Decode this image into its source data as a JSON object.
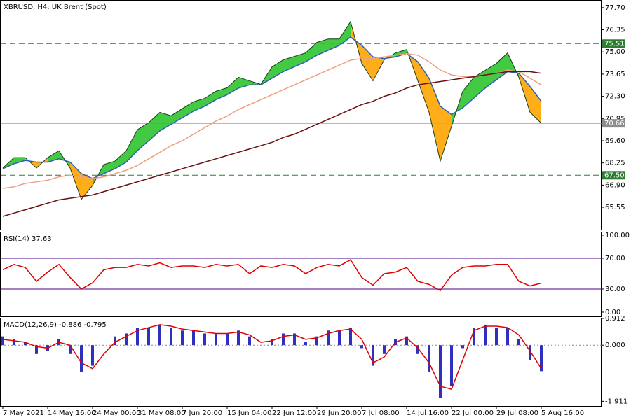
{
  "chart_data": [
    {
      "type": "price",
      "title": "XBRUSD, H4:  UK Brent (Spot)",
      "categories": [
        "7 May 2021",
        null,
        null,
        null,
        "14 May 16:00",
        null,
        null,
        null,
        "24 May 00:00",
        null,
        null,
        null,
        "31 May 08:00",
        null,
        null,
        null,
        "7 Jun 20:00",
        null,
        null,
        null,
        "15 Jun 04:00",
        null,
        null,
        null,
        "22 Jun 12:00",
        null,
        null,
        null,
        "29 Jun 20:00",
        null,
        null,
        null,
        "7 Jul 08:00",
        null,
        null,
        null,
        "14 Jul 16:00",
        null,
        null,
        null,
        "22 Jul 00:00",
        null,
        null,
        null,
        "29 Jul 08:00",
        null,
        null,
        null,
        "5 Aug 16:00"
      ],
      "series": [
        {
          "color": "#1a3d1a",
          "values": [
            67.94,
            68.57,
            68.57,
            67.94,
            68.57,
            68.99,
            67.94,
            66.03,
            66.88,
            68.15,
            68.36,
            68.99,
            70.27,
            70.7,
            71.33,
            71.12,
            71.55,
            71.97,
            72.18,
            72.61,
            72.82,
            73.46,
            73.24,
            73.03,
            74.09,
            74.52,
            74.73,
            74.94,
            75.58,
            75.79,
            75.79,
            76.85,
            74.3,
            73.24,
            74.52,
            74.94,
            75.15,
            73.24,
            71.33,
            68.36,
            70.48,
            72.61,
            73.46,
            73.88,
            74.3,
            74.94,
            73.46,
            71.33,
            70.66
          ]
        },
        {
          "color": "#2f5fb3",
          "values": [
            67.9,
            68.2,
            68.4,
            68.3,
            68.3,
            68.5,
            68.3,
            67.6,
            67.3,
            67.6,
            67.9,
            68.3,
            69.0,
            69.6,
            70.2,
            70.6,
            71.0,
            71.4,
            71.7,
            72.1,
            72.4,
            72.8,
            73.0,
            73.0,
            73.4,
            73.8,
            74.1,
            74.4,
            74.8,
            75.1,
            75.4,
            75.9,
            75.4,
            74.7,
            74.6,
            74.7,
            74.9,
            74.4,
            73.4,
            71.7,
            71.2,
            71.6,
            72.2,
            72.8,
            73.3,
            73.8,
            73.7,
            72.9,
            72.0
          ]
        },
        {
          "color": "#f0a080",
          "values": [
            66.7,
            66.8,
            67.0,
            67.1,
            67.2,
            67.4,
            67.5,
            67.4,
            67.3,
            67.4,
            67.6,
            67.8,
            68.1,
            68.5,
            68.9,
            69.3,
            69.6,
            70.0,
            70.4,
            70.8,
            71.1,
            71.5,
            71.8,
            72.1,
            72.4,
            72.7,
            73.0,
            73.3,
            73.6,
            73.9,
            74.2,
            74.5,
            74.6,
            74.6,
            74.7,
            74.8,
            74.9,
            74.8,
            74.4,
            73.9,
            73.6,
            73.5,
            73.5,
            73.6,
            73.7,
            73.9,
            73.8,
            73.4,
            73.0
          ]
        },
        {
          "color": "#6b0f0f",
          "values": [
            65.0,
            65.2,
            65.4,
            65.6,
            65.8,
            66.0,
            66.1,
            66.2,
            66.3,
            66.5,
            66.7,
            66.9,
            67.1,
            67.3,
            67.5,
            67.7,
            67.9,
            68.1,
            68.3,
            68.5,
            68.7,
            68.9,
            69.1,
            69.3,
            69.5,
            69.8,
            70.0,
            70.3,
            70.6,
            70.9,
            71.2,
            71.5,
            71.8,
            72.0,
            72.3,
            72.5,
            72.8,
            73.0,
            73.1,
            73.2,
            73.3,
            73.4,
            73.5,
            73.6,
            73.7,
            73.8,
            73.8,
            73.8,
            73.7
          ]
        }
      ],
      "fill_above": "#2ec52e",
      "fill_below": "#ffa500",
      "levels": [
        {
          "value": 75.51,
          "color": "#2e7d32",
          "dashed": true
        },
        {
          "value": 70.66,
          "color": "#8c8c8c",
          "dashed": false
        },
        {
          "value": 67.5,
          "label": "67.50",
          "color": "#2e7d32",
          "dashed": true
        }
      ],
      "ylim": [
        64.19,
        78.12
      ],
      "yticks": [
        {
          "value": 77.7,
          "label": "77.70"
        },
        76.35,
        {
          "value": 75,
          "label": "75.00"
        },
        73.65,
        {
          "value": 72.3,
          "label": "72.30"
        },
        70.95,
        {
          "value": 69.6,
          "label": "69.60"
        },
        68.25,
        {
          "value": 66.9,
          "label": "66.90"
        },
        65.55
      ]
    },
    {
      "type": "line",
      "title": "RSI(14) 37.63",
      "series": [
        {
          "color": "#e00000",
          "values": [
            55,
            62,
            58,
            40,
            52,
            62,
            45,
            30,
            38,
            55,
            58,
            58,
            62,
            60,
            64,
            58,
            60,
            60,
            58,
            62,
            60,
            62,
            50,
            60,
            58,
            62,
            60,
            50,
            58,
            62,
            60,
            68,
            45,
            35,
            50,
            52,
            58,
            40,
            36,
            28,
            48,
            58,
            60,
            60,
            62,
            62,
            40,
            34,
            37.63
          ]
        }
      ],
      "levels": [
        {
          "value": 70,
          "color": "#4b0082"
        },
        {
          "value": 30,
          "color": "#4b0082"
        }
      ],
      "ylim": [
        -5.5,
        103.6
      ],
      "yticks": [
        {
          "value": 100,
          "label": "100.00"
        },
        {
          "value": 70,
          "label": "70.00"
        },
        {
          "value": 30,
          "label": "30.00"
        },
        {
          "value": 0,
          "label": "0.00"
        }
      ]
    },
    {
      "type": "macd",
      "title": "MACD(12,26,9) -0.886 -0.795",
      "series": [
        {
          "type": "bar",
          "color": "#3030c0",
          "values": [
            0.3,
            0.2,
            0.1,
            -0.3,
            -0.2,
            0.2,
            -0.3,
            -0.9,
            -0.7,
            0.0,
            0.3,
            0.4,
            0.6,
            0.6,
            0.7,
            0.6,
            0.5,
            0.5,
            0.4,
            0.4,
            0.4,
            0.5,
            0.3,
            0.0,
            0.2,
            0.4,
            0.4,
            0.1,
            0.3,
            0.5,
            0.5,
            0.6,
            -0.1,
            -0.7,
            -0.3,
            0.2,
            0.3,
            -0.3,
            -0.9,
            -1.8,
            -1.4,
            -0.1,
            0.6,
            0.7,
            0.6,
            0.6,
            0.2,
            -0.5,
            -0.886
          ]
        },
        {
          "type": "line",
          "color": "#e00000",
          "values": [
            0.2,
            0.15,
            0.1,
            -0.05,
            -0.1,
            0.1,
            0.0,
            -0.6,
            -0.8,
            -0.3,
            0.1,
            0.3,
            0.5,
            0.6,
            0.7,
            0.65,
            0.55,
            0.5,
            0.45,
            0.4,
            0.4,
            0.45,
            0.35,
            0.1,
            0.15,
            0.3,
            0.35,
            0.2,
            0.25,
            0.4,
            0.5,
            0.55,
            0.2,
            -0.6,
            -0.4,
            0.1,
            0.25,
            -0.1,
            -0.6,
            -1.4,
            -1.5,
            -0.5,
            0.5,
            0.65,
            0.65,
            0.6,
            0.35,
            -0.2,
            -0.795
          ]
        }
      ],
      "ylim": [
        -2.07,
        0.912
      ],
      "yticks": [
        0.912,
        {
          "value": 0,
          "label": "0.000"
        },
        -1.911
      ]
    }
  ]
}
